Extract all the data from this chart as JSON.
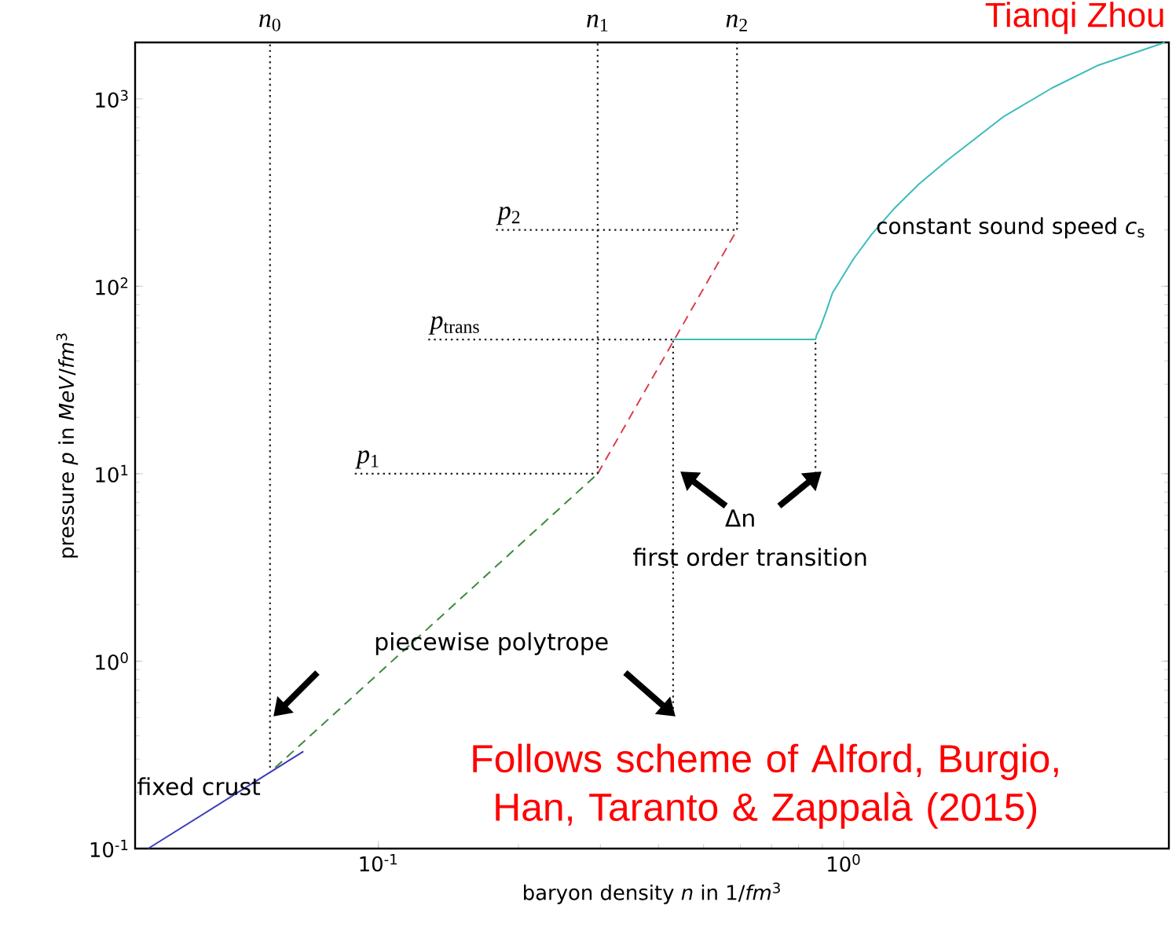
{
  "chart_data": {
    "type": "line",
    "xlabel": "baryon density *n* in 1/*fm*$^{3}$",
    "ylabel": "pressure *p* in *MeV*/*fm*$^{3}$",
    "log": "xy",
    "xlim": [
      0.03,
      5
    ],
    "ylim": [
      0.1,
      2000
    ],
    "xticks": [
      {
        "value": 0.1,
        "label": "10$^{-1}$"
      },
      {
        "value": 1,
        "label": "10$^{0}$"
      }
    ],
    "yticks": [
      {
        "value": 0.1,
        "label": "10$^{-1}$"
      },
      {
        "value": 1,
        "label": "10$^{0}$"
      },
      {
        "value": 10,
        "label": "10$^{1}$"
      },
      {
        "value": 100,
        "label": "10$^{2}$"
      },
      {
        "value": 1000,
        "label": "10$^{3}$"
      }
    ],
    "series": [
      {
        "color": "#3a3ab8",
        "line_style": "solid",
        "x": [
          0.032,
          0.069
        ],
        "values": [
          0.1,
          0.33
        ]
      },
      {
        "color": "#3d8a3d",
        "line_style": "dashed",
        "x": [
          0.06,
          0.296
        ],
        "values": [
          0.27,
          10
        ]
      },
      {
        "color": "#d9414f",
        "line_style": "dashed",
        "x": [
          0.296,
          0.59
        ],
        "values": [
          10,
          200
        ]
      },
      {
        "color": "#3cbcbc",
        "line_style": "solid",
        "x": [
          0.43,
          0.87,
          0.875,
          0.89,
          0.92,
          0.946,
          1.05,
          1.15,
          1.29,
          1.45,
          1.67,
          2.2,
          2.8,
          3.5,
          4.9
        ],
        "values": [
          52,
          52,
          55,
          60,
          75,
          92,
          140,
          190,
          263,
          350,
          470,
          800,
          1140,
          1500,
          2000
        ]
      },
      {
        "type": "line",
        "color": "#222222",
        "line_style": "dotted",
        "x": [
          0.0585,
          0.0585
        ],
        "values": [
          0.27,
          2000
        ]
      },
      {
        "type": "line",
        "color": "#222222",
        "line_style": "dotted",
        "x": [
          0.296,
          0.296
        ],
        "values": [
          10,
          2000
        ]
      },
      {
        "type": "line",
        "color": "#222222",
        "line_style": "dotted",
        "x": [
          0.59,
          0.59
        ],
        "values": [
          200,
          2000
        ]
      },
      {
        "type": "line",
        "color": "#222222",
        "line_style": "dotted",
        "x": [
          0.089,
          0.296
        ],
        "values": [
          10,
          10
        ]
      },
      {
        "type": "line",
        "color": "#222222",
        "line_style": "dotted",
        "x": [
          0.128,
          0.43
        ],
        "values": [
          52,
          52
        ]
      },
      {
        "type": "line",
        "color": "#222222",
        "line_style": "dotted",
        "x": [
          0.179,
          0.59
        ],
        "values": [
          200,
          200
        ]
      },
      {
        "type": "line",
        "color": "#222222",
        "line_style": "dotted",
        "x": [
          0.43,
          0.43
        ],
        "values": [
          0.52,
          52
        ]
      },
      {
        "type": "line",
        "color": "#222222",
        "line_style": "dotted",
        "x": [
          0.87,
          0.87
        ],
        "values": [
          10,
          52
        ]
      }
    ],
    "annotations": [
      "Tianqi Zhou",
      "constant sound speed *c*$_{s}$",
      "piecewise polytrope",
      "Δn",
      "first order transition",
      "fixed crust",
      "Follows scheme of Alford, Burgio, Han, Taranto & Zappalà (2015)",
      {
        "text": "*p*$_{1}$",
        "x": 0.089,
        "y": 10
      },
      {
        "text": "*p*$_{trans}$",
        "x": 0.128,
        "y": 52
      },
      {
        "text": "*p*$_{2}$",
        "x": 0.179,
        "y": 200
      },
      {
        "text": "*n*$_{0}$",
        "x": 0.0585,
        "y": 2000
      },
      {
        "text": "*n*$_{1}$",
        "x": 0.296,
        "y": 2000
      },
      {
        "text": "*n*$_{2}$",
        "x": 0.59,
        "y": 2000
      }
    ]
  }
}
